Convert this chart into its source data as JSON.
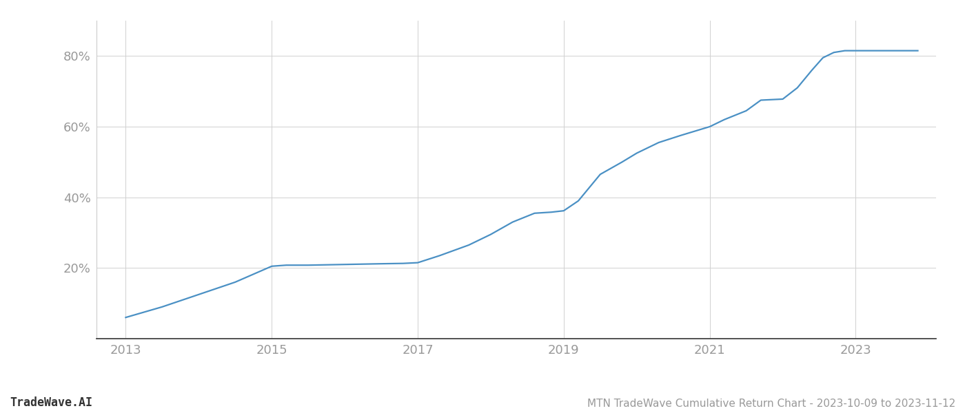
{
  "title": "MTN TradeWave Cumulative Return Chart - 2023-10-09 to 2023-11-12",
  "watermark": "TradeWave.AI",
  "line_color": "#4a90c4",
  "line_width": 1.6,
  "background_color": "#ffffff",
  "grid_color": "#d0d0d0",
  "x_years": [
    2013.0,
    2013.5,
    2014.0,
    2014.5,
    2015.0,
    2015.2,
    2015.5,
    2016.0,
    2016.5,
    2016.8,
    2017.0,
    2017.3,
    2017.7,
    2018.0,
    2018.3,
    2018.6,
    2018.83,
    2019.0,
    2019.2,
    2019.5,
    2019.8,
    2020.0,
    2020.3,
    2020.6,
    2021.0,
    2021.2,
    2021.5,
    2021.7,
    2022.0,
    2022.2,
    2022.4,
    2022.55,
    2022.7,
    2022.85,
    2023.0,
    2023.3,
    2023.7,
    2023.85
  ],
  "y_values": [
    6.0,
    9.0,
    12.5,
    16.0,
    20.5,
    20.8,
    20.8,
    21.0,
    21.2,
    21.3,
    21.5,
    23.5,
    26.5,
    29.5,
    33.0,
    35.5,
    35.8,
    36.2,
    39.0,
    46.5,
    50.0,
    52.5,
    55.5,
    57.5,
    60.0,
    62.0,
    64.5,
    67.5,
    67.8,
    71.0,
    76.0,
    79.5,
    81.0,
    81.5,
    81.5,
    81.5,
    81.5,
    81.5
  ],
  "xlim": [
    2012.6,
    2024.1
  ],
  "ylim": [
    0,
    90
  ],
  "xtick_labels": [
    "2013",
    "2015",
    "2017",
    "2019",
    "2021",
    "2023"
  ],
  "xtick_positions": [
    2013,
    2015,
    2017,
    2019,
    2021,
    2023
  ],
  "ytick_positions": [
    20,
    40,
    60,
    80
  ],
  "ytick_labels": [
    "20%",
    "40%",
    "60%",
    "80%"
  ],
  "tick_color": "#999999",
  "tick_fontsize": 13,
  "title_fontsize": 11,
  "watermark_fontsize": 12,
  "left_spine_color": "#cccccc",
  "bottom_spine_color": "#333333"
}
